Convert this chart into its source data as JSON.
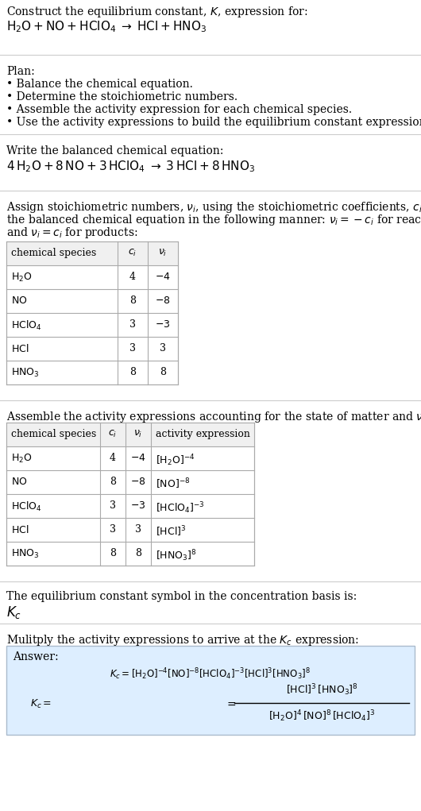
{
  "bg_color": "#ffffff",
  "separator_color": "#cccccc",
  "text_color": "#000000",
  "table_border_color": "#aaaaaa",
  "table_header_bg": "#f0f0f0",
  "answer_bg": "#ddeeff",
  "answer_border": "#aabbcc",
  "sec1_line1": "Construct the equilibrium constant, $K$, expression for:",
  "sec1_line2_plain": "H",
  "sec1_line2": "$\\mathrm{H_2O + NO + HClO_4} \\;\\rightarrow\\; \\mathrm{HCl + HNO_3}$",
  "plan_header": "Plan:",
  "plan_items": [
    "\\bullet\\; Balance the chemical equation.",
    "\\bullet\\; Determine the stoichiometric numbers.",
    "\\bullet\\; Assemble the activity expression for each chemical species.",
    "\\bullet\\; Use the activity expressions to build the equilibrium constant expression."
  ],
  "balanced_header": "Write the balanced chemical equation:",
  "balanced_eq": "$4\\,\\mathrm{H_2O + 8\\,NO + 3\\,HClO_4} \\;\\rightarrow\\; \\mathrm{3\\,HCl + 8\\,HNO_3}$",
  "stoich_text_lines": [
    "Assign stoichiometric numbers, $\\nu_i$, using the stoichiometric coefficients, $c_i$, from",
    "the balanced chemical equation in the following manner: $\\nu_i = -c_i$ for reactants",
    "and $\\nu_i = c_i$ for products:"
  ],
  "table1_headers": [
    "chemical species",
    "$c_i$",
    "$\\nu_i$"
  ],
  "table1_rows": [
    [
      "$\\mathrm{H_2O}$",
      "4",
      "$-4$"
    ],
    [
      "$\\mathrm{NO}$",
      "8",
      "$-8$"
    ],
    [
      "$\\mathrm{HClO_4}$",
      "3",
      "$-3$"
    ],
    [
      "$\\mathrm{HCl}$",
      "3",
      "3"
    ],
    [
      "$\\mathrm{HNO_3}$",
      "8",
      "8"
    ]
  ],
  "activity_header": "Assemble the activity expressions accounting for the state of matter and $\\nu_i$:",
  "table2_headers": [
    "chemical species",
    "$c_i$",
    "$\\nu_i$",
    "activity expression"
  ],
  "table2_rows": [
    [
      "$\\mathrm{H_2O}$",
      "4",
      "$-4$",
      "$[\\mathrm{H_2O}]^{-4}$"
    ],
    [
      "$\\mathrm{NO}$",
      "8",
      "$-8$",
      "$[\\mathrm{NO}]^{-8}$"
    ],
    [
      "$\\mathrm{HClO_4}$",
      "3",
      "$-3$",
      "$[\\mathrm{HClO_4}]^{-3}$"
    ],
    [
      "$\\mathrm{HCl}$",
      "3",
      "3",
      "$[\\mathrm{HCl}]^3$"
    ],
    [
      "$\\mathrm{HNO_3}$",
      "8",
      "8",
      "$[\\mathrm{HNO_3}]^8$"
    ]
  ],
  "kc_header": "The equilibrium constant symbol in the concentration basis is:",
  "kc_symbol": "$K_c$",
  "multiply_header": "Mulitply the activity expressions to arrive at the $K_c$ expression:",
  "answer_label": "Answer:",
  "kc_lhs": "$K_c = [\\mathrm{H_2O}]^{-4}[\\mathrm{NO}]^{-8}[\\mathrm{HClO_4}]^{-3}[\\mathrm{HCl}]^3[\\mathrm{HNO_3}]^8 = $",
  "kc_num": "$[\\mathrm{HCl}]^3\\,[\\mathrm{HNO_3}]^8$",
  "kc_den": "$[\\mathrm{H_2O}]^4\\,[\\mathrm{NO}]^8\\,[\\mathrm{HClO_4}]^3$"
}
